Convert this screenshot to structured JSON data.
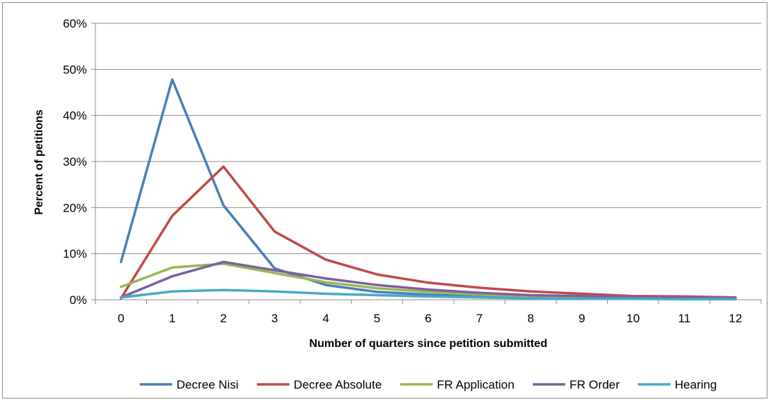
{
  "chart_data": {
    "type": "line",
    "title": "",
    "xlabel": "Number of quarters since petition submitted",
    "ylabel": "Percent of petitions",
    "x": [
      0,
      1,
      2,
      3,
      4,
      5,
      6,
      7,
      8,
      9,
      10,
      11,
      12
    ],
    "x_tick_labels": [
      "0",
      "1",
      "2",
      "3",
      "4",
      "5",
      "6",
      "7",
      "8",
      "9",
      "10",
      "11",
      "12"
    ],
    "ylim": [
      0,
      60
    ],
    "y_ticks": [
      0,
      10,
      20,
      30,
      40,
      50,
      60
    ],
    "y_tick_labels": [
      "0%",
      "10%",
      "20%",
      "30%",
      "40%",
      "50%",
      "60%"
    ],
    "grid": "horizontal",
    "legend_position": "bottom",
    "series": [
      {
        "name": "Decree Nisi",
        "color": "#4a7ebb",
        "values": [
          8.2,
          47.8,
          20.5,
          6.8,
          3.2,
          1.7,
          1.1,
          0.7,
          0.5,
          0.4,
          0.3,
          0.2,
          0.2
        ]
      },
      {
        "name": "Decree Absolute",
        "color": "#be4b48",
        "values": [
          0.3,
          18.2,
          28.9,
          14.8,
          8.7,
          5.5,
          3.7,
          2.6,
          1.8,
          1.3,
          0.8,
          0.7,
          0.5
        ]
      },
      {
        "name": "FR Application",
        "color": "#98b954",
        "values": [
          2.8,
          7.0,
          7.8,
          5.8,
          3.8,
          2.5,
          1.7,
          1.1,
          0.8,
          0.6,
          0.4,
          0.3,
          0.3
        ]
      },
      {
        "name": "FR Order",
        "color": "#7d60a0",
        "values": [
          0.5,
          5.1,
          8.2,
          6.4,
          4.6,
          3.2,
          2.2,
          1.5,
          1.0,
          0.8,
          0.6,
          0.5,
          0.4
        ]
      },
      {
        "name": "Hearing",
        "color": "#46aac5",
        "values": [
          0.5,
          1.8,
          2.1,
          1.8,
          1.3,
          1.0,
          0.7,
          0.5,
          0.3,
          0.2,
          0.2,
          0.1,
          0.1
        ]
      }
    ]
  }
}
